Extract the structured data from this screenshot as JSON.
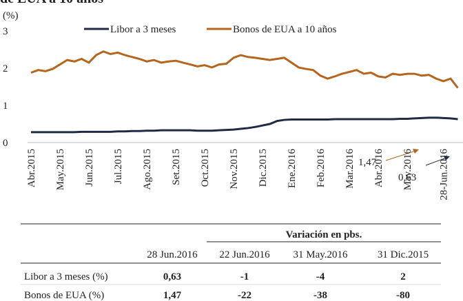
{
  "chart_data": {
    "type": "line",
    "title": "de EUA a 10 años",
    "ylabel": "(%)",
    "categories": [
      "Abr.2015",
      null,
      null,
      null,
      "May.2015",
      null,
      null,
      null,
      "Jun.2015",
      null,
      null,
      null,
      "Jul.2015",
      null,
      null,
      null,
      "Ago.2015",
      null,
      null,
      null,
      "Set.2015",
      null,
      null,
      null,
      "Oct.2015",
      null,
      null,
      null,
      "Nov.2015",
      null,
      null,
      null,
      "Dic.2015",
      null,
      null,
      null,
      "Ene.2016",
      null,
      null,
      null,
      "Feb.2016",
      null,
      null,
      null,
      "Mar.2016",
      null,
      null,
      null,
      "Abr.2016",
      null,
      null,
      null,
      "May.2016",
      null,
      null,
      null,
      null,
      "28-Jun.2016",
      null,
      null
    ],
    "series": [
      {
        "name": "Libor a 3  meses",
        "color": "#1f2a44",
        "values": [
          0.28,
          0.28,
          0.28,
          0.28,
          0.28,
          0.28,
          0.28,
          0.29,
          0.29,
          0.29,
          0.29,
          0.29,
          0.3,
          0.3,
          0.31,
          0.31,
          0.32,
          0.32,
          0.33,
          0.33,
          0.33,
          0.33,
          0.33,
          0.32,
          0.32,
          0.32,
          0.33,
          0.34,
          0.35,
          0.37,
          0.39,
          0.42,
          0.46,
          0.5,
          0.58,
          0.61,
          0.62,
          0.62,
          0.62,
          0.62,
          0.62,
          0.62,
          0.63,
          0.63,
          0.63,
          0.63,
          0.63,
          0.63,
          0.63,
          0.63,
          0.63,
          0.64,
          0.64,
          0.65,
          0.66,
          0.67,
          0.67,
          0.66,
          0.65,
          0.63
        ]
      },
      {
        "name": "Bonos de EUA a 10 años",
        "color": "#b5651d",
        "values": [
          1.88,
          1.95,
          1.92,
          1.98,
          2.1,
          2.22,
          2.18,
          2.25,
          2.15,
          2.35,
          2.45,
          2.38,
          2.42,
          2.35,
          2.3,
          2.25,
          2.18,
          2.22,
          2.15,
          2.18,
          2.2,
          2.15,
          2.1,
          2.05,
          2.08,
          2.02,
          2.1,
          2.12,
          2.28,
          2.35,
          2.3,
          2.28,
          2.25,
          2.22,
          2.25,
          2.28,
          2.15,
          2.02,
          1.98,
          1.95,
          1.8,
          1.72,
          1.78,
          1.85,
          1.9,
          1.95,
          1.85,
          1.88,
          1.78,
          1.75,
          1.85,
          1.82,
          1.85,
          1.85,
          1.8,
          1.82,
          1.72,
          1.65,
          1.72,
          1.47
        ]
      }
    ],
    "annotations": [
      "1,47",
      "0,63"
    ],
    "ylim": [
      0,
      3
    ],
    "yticks": [
      0,
      1,
      2,
      3
    ],
    "grid": false
  },
  "table": {
    "group_header": "Variación en pbs.",
    "header": [
      "28 Jun.2016",
      "22 Jun.2016",
      "31 May.2016",
      "31 Dic.2015"
    ],
    "rows": [
      [
        "Libor a 3 meses (%)",
        "0,63",
        "-1",
        "-4",
        "2"
      ],
      [
        "Bonos de EUA (%)",
        "1,47",
        "-22",
        "-38",
        "-80"
      ]
    ]
  }
}
